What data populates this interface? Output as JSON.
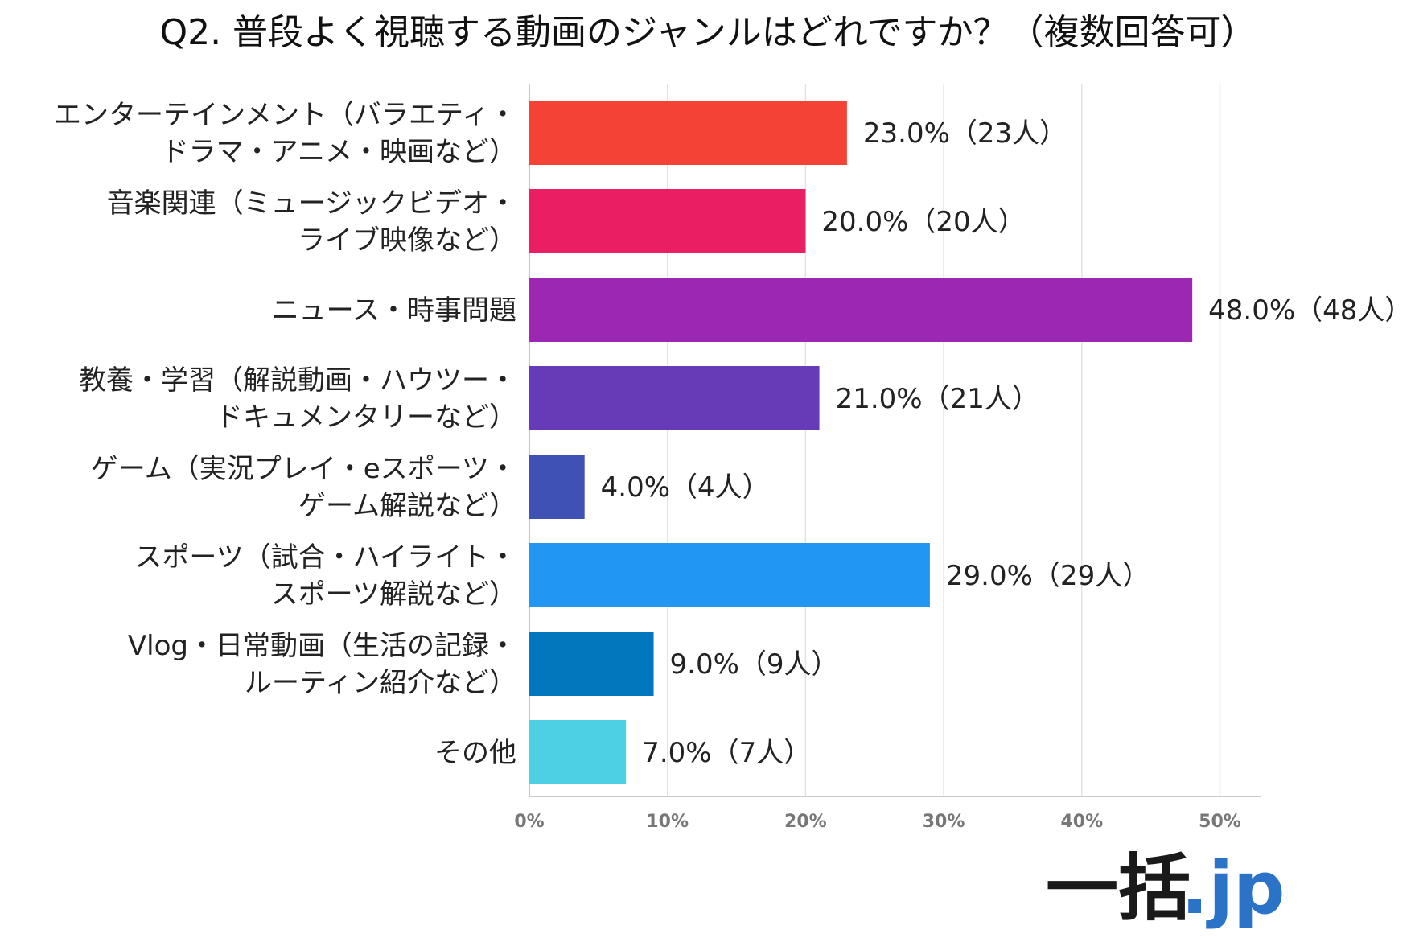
{
  "chart_data": {
    "type": "bar",
    "orientation": "horizontal",
    "title": "Q2. 普段よく視聴する動画のジャンルはどれですか？（複数回答可）",
    "categories": [
      [
        "エンターテインメント（バラエティ・",
        "ドラマ・アニメ・映画など）"
      ],
      [
        "音楽関連（ミュージックビデオ・",
        "ライブ映像など）"
      ],
      [
        "ニュース・時事問題"
      ],
      [
        "教養・学習（解説動画・ハウツー・",
        "ドキュメンタリーなど）"
      ],
      [
        "ゲーム（実況プレイ・eスポーツ・",
        "ゲーム解説など）"
      ],
      [
        "スポーツ（試合・ハイライト・",
        "スポーツ解説など）"
      ],
      [
        "Vlog・日常動画（生活の記録・",
        "ルーティン紹介など）"
      ],
      [
        "その他"
      ]
    ],
    "values": [
      23.0,
      20.0,
      48.0,
      21.0,
      4.0,
      29.0,
      9.0,
      7.0
    ],
    "data_labels": [
      "23.0%（23人）",
      "20.0%（20人）",
      "48.0%（48人）",
      "21.0%（21人）",
      "4.0%（4人）",
      "29.0%（29人）",
      "9.0%（9人）",
      "7.0%（7人）"
    ],
    "colors": [
      "#f44336",
      "#e91e63",
      "#9c27b0",
      "#673ab7",
      "#3f51b5",
      "#2196f3",
      "#0277bd",
      "#4dd0e1"
    ],
    "xlim": [
      0,
      53
    ],
    "ticks": [
      0,
      10,
      20,
      30,
      40,
      50
    ],
    "tick_labels": [
      "0%",
      "10%",
      "20%",
      "30%",
      "40%",
      "50%"
    ],
    "grid": true,
    "xlabel": "",
    "ylabel": ""
  },
  "logo": {
    "main": "一括",
    "sub": ".jp"
  }
}
